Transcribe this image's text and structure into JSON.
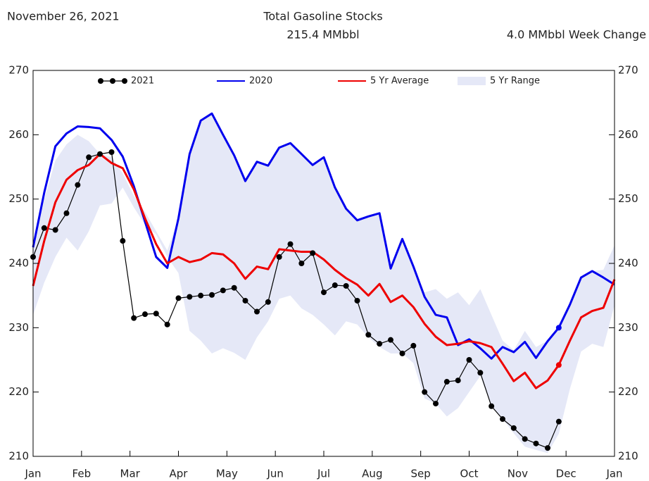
{
  "chart_data": {
    "type": "line",
    "date": "November 26, 2021",
    "title": "Total Gasoline Stocks",
    "subtitle": "215.4 MMbbl",
    "week_change": "4.0 MMbbl Week Change",
    "x": [
      0,
      0.23,
      0.46,
      0.69,
      0.92,
      1.15,
      1.38,
      1.62,
      1.85,
      2.08,
      2.31,
      2.54,
      2.77,
      3,
      3.23,
      3.46,
      3.69,
      3.92,
      4.15,
      4.38,
      4.62,
      4.85,
      5.08,
      5.31,
      5.54,
      5.77,
      6,
      6.23,
      6.46,
      6.69,
      6.92,
      7.15,
      7.38,
      7.62,
      7.85,
      8.08,
      8.31,
      8.54,
      8.77,
      9,
      9.23,
      9.46,
      9.69,
      9.92,
      10.15,
      10.38,
      10.62,
      10.85,
      11.08,
      11.31,
      11.54,
      11.77,
      12
    ],
    "xlim": [
      0,
      12
    ],
    "xticks": [
      {
        "value": 0,
        "label": "Jan"
      },
      {
        "value": 1,
        "label": "Feb"
      },
      {
        "value": 2,
        "label": "Mar"
      },
      {
        "value": 3,
        "label": "Apr"
      },
      {
        "value": 4,
        "label": "May"
      },
      {
        "value": 5,
        "label": "Jun"
      },
      {
        "value": 6,
        "label": "Jul"
      },
      {
        "value": 7,
        "label": "Aug"
      },
      {
        "value": 8,
        "label": "Sep"
      },
      {
        "value": 9,
        "label": "Oct"
      },
      {
        "value": 10,
        "label": "Nov"
      },
      {
        "value": 11,
        "label": "Dec"
      },
      {
        "value": 12,
        "label": "Jan"
      }
    ],
    "ylim": [
      210,
      270
    ],
    "yticks": [
      210,
      220,
      230,
      240,
      250,
      260,
      270
    ],
    "legend": "upper center",
    "range": {
      "name": "5 Yr Range",
      "color": "#e5e8f7",
      "lower": [
        232,
        237,
        241,
        244,
        242,
        245,
        249,
        249.3,
        251.8,
        248.7,
        246,
        244.5,
        241,
        238.5,
        229.5,
        228,
        226,
        226.8,
        226.1,
        225,
        228.5,
        231,
        234.5,
        235,
        233,
        232,
        230.5,
        228.8,
        231,
        230.5,
        228.5,
        227,
        226,
        226,
        224.5,
        219,
        218.2,
        216.2,
        217.5,
        220,
        222.5,
        217.8,
        215.8,
        213.6,
        211.5,
        211,
        210.5,
        213.5,
        220.5,
        226.3,
        227.5,
        227,
        233.5
      ],
      "upper": [
        243,
        250,
        256,
        258.5,
        260,
        259,
        257,
        256.5,
        254,
        250.5,
        248,
        245,
        242,
        247,
        257,
        262.2,
        263.3,
        260,
        256.8,
        252.8,
        255.8,
        255.2,
        258,
        258.7,
        257,
        255.3,
        256.5,
        251.8,
        248.5,
        246.7,
        247.3,
        247.8,
        239.2,
        243.8,
        239.5,
        235.5,
        236,
        234.5,
        235.5,
        233.5,
        236,
        232,
        228,
        226.5,
        229.5,
        227,
        228,
        230,
        233.6,
        237.8,
        238.8,
        239,
        242.8
      ]
    },
    "series": [
      {
        "name": "2021",
        "color": "#000000",
        "values": [
          241.0,
          245.5,
          245.2,
          247.8,
          252.2,
          256.5,
          257.0,
          257.3,
          243.5,
          231.5,
          232.1,
          232.2,
          230.5,
          234.6,
          234.8,
          235.0,
          235.1,
          235.8,
          236.2,
          234.2,
          232.5,
          234.0,
          241.0,
          243.0,
          240.0,
          241.6,
          235.5,
          236.6,
          236.5,
          234.2,
          228.9,
          227.5,
          228.1,
          226.0,
          227.2,
          220.0,
          218.2,
          221.6,
          221.8,
          225.0,
          223.0,
          217.8,
          215.8,
          214.4,
          212.7,
          212.0,
          211.3,
          215.4,
          null,
          null,
          null,
          null,
          null
        ]
      },
      {
        "name": "2020",
        "color": "#0000ee",
        "values": [
          242.5,
          251,
          258.2,
          260.2,
          261.3,
          261.2,
          261,
          259.2,
          256.6,
          252,
          246.5,
          241,
          239.3,
          247,
          257,
          262.2,
          263.3,
          260,
          256.8,
          252.8,
          255.8,
          255.2,
          258,
          258.7,
          257,
          255.3,
          256.5,
          251.8,
          248.5,
          246.7,
          247.3,
          247.8,
          239.2,
          243.8,
          239.5,
          234.8,
          232,
          231.6,
          227.3,
          228.2,
          226.8,
          225.2,
          227,
          226.2,
          227.8,
          225.3,
          227.9,
          230,
          233.6,
          237.8,
          238.8,
          237.8,
          236.7
        ]
      },
      {
        "name": "5 Yr Average",
        "color": "#ee0000",
        "values": [
          236.5,
          243.5,
          249.5,
          253,
          254.5,
          255.3,
          257,
          255.6,
          254.8,
          251.5,
          247,
          243,
          240,
          241,
          240.2,
          240.6,
          241.6,
          241.4,
          240,
          237.6,
          239.5,
          239.1,
          242.2,
          242,
          241.8,
          241.8,
          240.6,
          239,
          237.7,
          236.7,
          235,
          236.8,
          234,
          235,
          233.2,
          230.6,
          228.6,
          227.3,
          227.5,
          227.9,
          227.6,
          227,
          224.4,
          221.7,
          223,
          220.6,
          221.8,
          224.2,
          228,
          231.6,
          232.6,
          233.1,
          237.5
        ]
      }
    ]
  }
}
